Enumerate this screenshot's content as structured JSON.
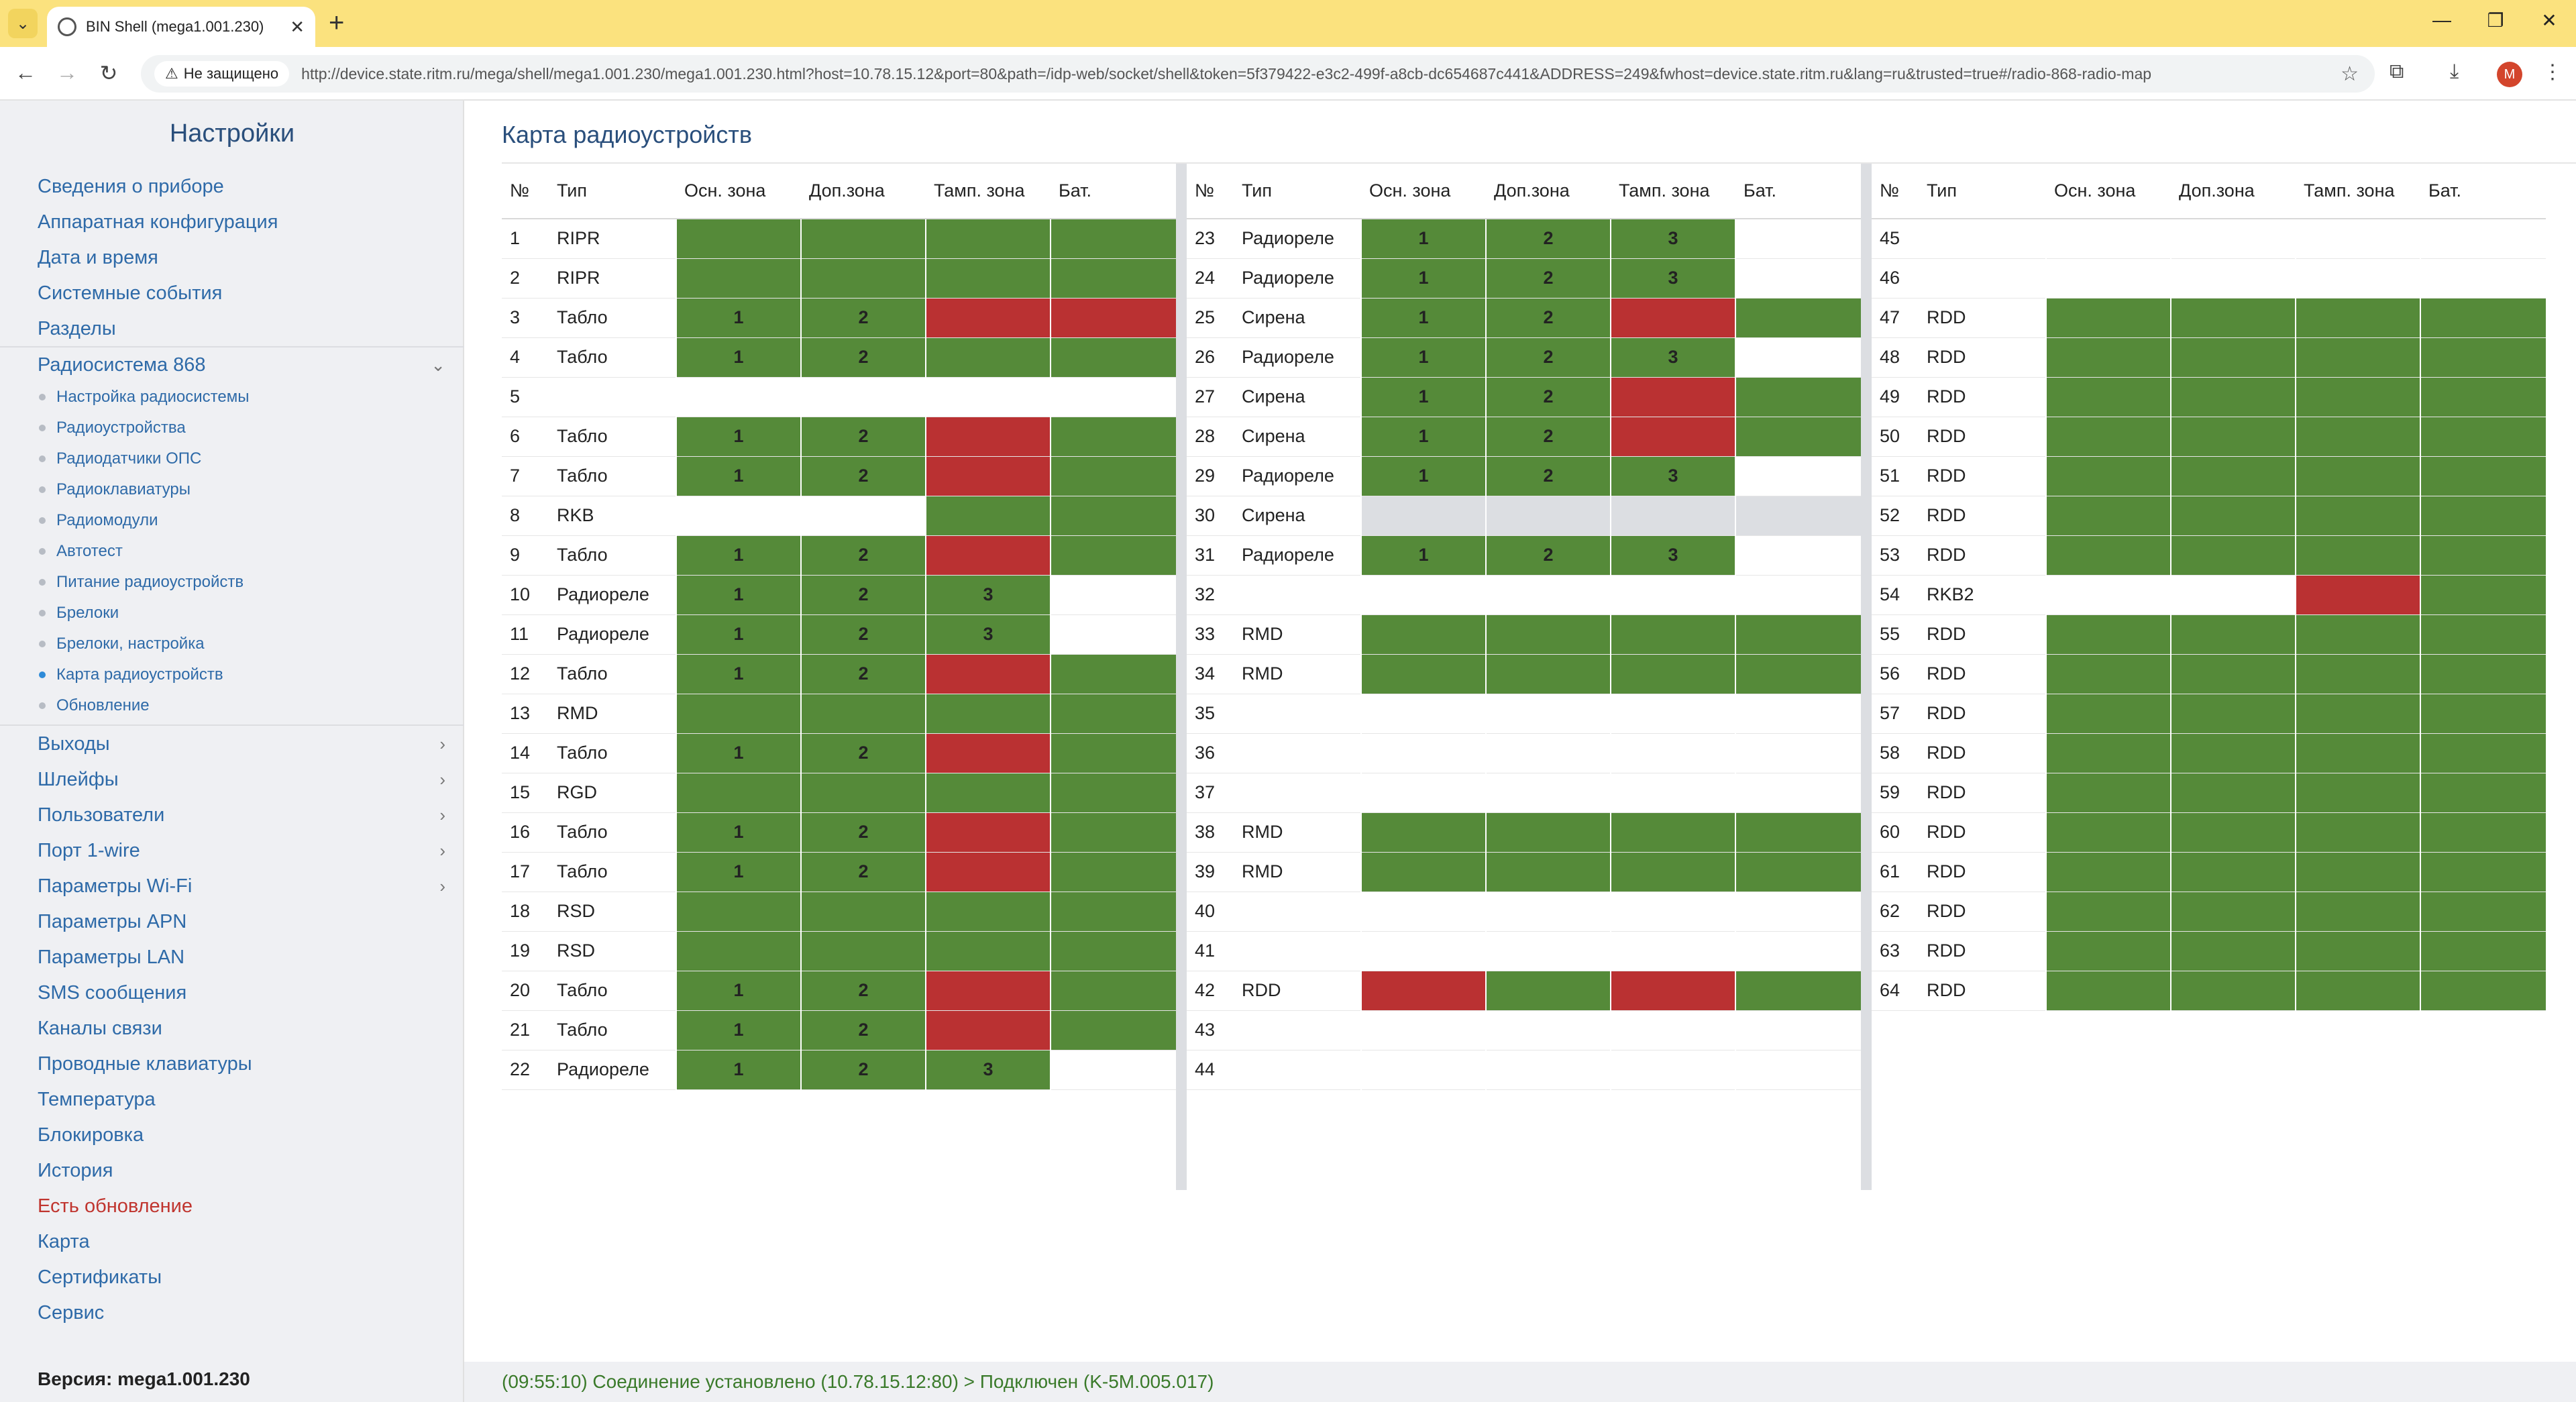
{
  "browser": {
    "tab_title": "BIN Shell (mega1.001.230)",
    "not_secure_label": "Не защищено",
    "url": "http://device.state.ritm.ru/mega/shell/mega1.001.230/mega1.001.230.html?host=10.78.15.12&port=80&path=/idp-web/socket/shell&token=5f379422-e3c2-499f-a8cb-dc654687c441&ADDRESS=249&fwhost=device.state.ritm.ru&lang=ru&trusted=true#/radio-868-radio-map",
    "profile_initial": "M"
  },
  "sidebar": {
    "title": "Настройки",
    "items": [
      {
        "label": "Сведения о приборе"
      },
      {
        "label": "Аппаратная конфигурация"
      },
      {
        "label": "Дата и время"
      },
      {
        "label": "Системные события"
      },
      {
        "label": "Разделы"
      },
      {
        "label": "Радиосистема 868"
      }
    ],
    "sub_items": [
      {
        "label": "Настройка радиосистемы"
      },
      {
        "label": "Радиоустройства"
      },
      {
        "label": "Радиодатчики ОПС"
      },
      {
        "label": "Радиоклавиатуры"
      },
      {
        "label": "Радиомодули"
      },
      {
        "label": "Автотест"
      },
      {
        "label": "Питание радиоустройств"
      },
      {
        "label": "Брелоки"
      },
      {
        "label": "Брелоки, настройка"
      },
      {
        "label": "Карта радиоустройств"
      },
      {
        "label": "Обновление"
      }
    ],
    "items2": [
      {
        "label": "Выходы"
      },
      {
        "label": "Шлейфы"
      },
      {
        "label": "Пользователи"
      },
      {
        "label": "Порт 1-wire"
      },
      {
        "label": "Параметры Wi-Fi"
      },
      {
        "label": "Параметры APN"
      },
      {
        "label": "Параметры LAN"
      },
      {
        "label": "SMS сообщения"
      },
      {
        "label": "Каналы связи"
      },
      {
        "label": "Проводные клавиатуры"
      },
      {
        "label": "Температура"
      },
      {
        "label": "Блокировка"
      },
      {
        "label": "История"
      },
      {
        "label": "Есть обновление"
      },
      {
        "label": "Карта"
      },
      {
        "label": "Сертификаты"
      },
      {
        "label": "Сервис"
      }
    ],
    "version": "Версия: mega1.001.230"
  },
  "main": {
    "title": "Карта радиоустройств",
    "headers": [
      "№",
      "Тип",
      "Осн. зона",
      "Доп.зона",
      "Тамп. зона",
      "Бат."
    ],
    "colors": {
      "green": "#558a39",
      "red": "#ba3132",
      "disabled": "#dcdee2"
    },
    "rows": [
      {
        "n": "1",
        "type": "RIPR",
        "c": [
          "g",
          "",
          "g",
          "",
          "g",
          "",
          "g",
          ""
        ]
      },
      {
        "n": "2",
        "type": "RIPR",
        "c": [
          "g",
          "",
          "g",
          "",
          "g",
          "",
          "g",
          ""
        ]
      },
      {
        "n": "3",
        "type": "Табло",
        "c": [
          "g",
          "1",
          "g",
          "2",
          "r",
          "",
          "r",
          ""
        ]
      },
      {
        "n": "4",
        "type": "Табло",
        "c": [
          "g",
          "1",
          "g",
          "2",
          "g",
          "",
          "g",
          ""
        ]
      },
      {
        "n": "5",
        "type": "",
        "c": [
          "",
          "",
          "",
          "",
          "",
          "",
          "",
          ""
        ]
      },
      {
        "n": "6",
        "type": "Табло",
        "c": [
          "g",
          "1",
          "g",
          "2",
          "r",
          "",
          "g",
          ""
        ]
      },
      {
        "n": "7",
        "type": "Табло",
        "c": [
          "g",
          "1",
          "g",
          "2",
          "r",
          "",
          "g",
          ""
        ]
      },
      {
        "n": "8",
        "type": "RKB",
        "c": [
          "",
          "",
          "",
          "",
          "g",
          "",
          "g",
          ""
        ]
      },
      {
        "n": "9",
        "type": "Табло",
        "c": [
          "g",
          "1",
          "g",
          "2",
          "r",
          "",
          "g",
          ""
        ]
      },
      {
        "n": "10",
        "type": "Радиореле",
        "c": [
          "g",
          "1",
          "g",
          "2",
          "g",
          "3",
          "",
          ""
        ]
      },
      {
        "n": "11",
        "type": "Радиореле",
        "c": [
          "g",
          "1",
          "g",
          "2",
          "g",
          "3",
          "",
          ""
        ]
      },
      {
        "n": "12",
        "type": "Табло",
        "c": [
          "g",
          "1",
          "g",
          "2",
          "r",
          "",
          "g",
          ""
        ]
      },
      {
        "n": "13",
        "type": "RMD",
        "c": [
          "g",
          "",
          "g",
          "",
          "g",
          "",
          "g",
          ""
        ]
      },
      {
        "n": "14",
        "type": "Табло",
        "c": [
          "g",
          "1",
          "g",
          "2",
          "r",
          "",
          "g",
          ""
        ]
      },
      {
        "n": "15",
        "type": "RGD",
        "c": [
          "g",
          "",
          "g",
          "",
          "g",
          "",
          "g",
          ""
        ]
      },
      {
        "n": "16",
        "type": "Табло",
        "c": [
          "g",
          "1",
          "g",
          "2",
          "r",
          "",
          "g",
          ""
        ]
      },
      {
        "n": "17",
        "type": "Табло",
        "c": [
          "g",
          "1",
          "g",
          "2",
          "r",
          "",
          "g",
          ""
        ]
      },
      {
        "n": "18",
        "type": "RSD",
        "c": [
          "g",
          "",
          "g",
          "",
          "g",
          "",
          "g",
          ""
        ]
      },
      {
        "n": "19",
        "type": "RSD",
        "c": [
          "g",
          "",
          "g",
          "",
          "g",
          "",
          "g",
          ""
        ]
      },
      {
        "n": "20",
        "type": "Табло",
        "c": [
          "g",
          "1",
          "g",
          "2",
          "r",
          "",
          "g",
          ""
        ]
      },
      {
        "n": "21",
        "type": "Табло",
        "c": [
          "g",
          "1",
          "g",
          "2",
          "r",
          "",
          "g",
          ""
        ]
      },
      {
        "n": "22",
        "type": "Радиореле",
        "c": [
          "g",
          "1",
          "g",
          "2",
          "g",
          "3",
          "",
          ""
        ]
      },
      {
        "n": "23",
        "type": "Радиореле",
        "c": [
          "g",
          "1",
          "g",
          "2",
          "g",
          "3",
          "",
          ""
        ]
      },
      {
        "n": "24",
        "type": "Радиореле",
        "c": [
          "g",
          "1",
          "g",
          "2",
          "g",
          "3",
          "",
          ""
        ]
      },
      {
        "n": "25",
        "type": "Сирена",
        "c": [
          "g",
          "1",
          "g",
          "2",
          "r",
          "",
          "g",
          ""
        ]
      },
      {
        "n": "26",
        "type": "Радиореле",
        "c": [
          "g",
          "1",
          "g",
          "2",
          "g",
          "3",
          "",
          ""
        ]
      },
      {
        "n": "27",
        "type": "Сирена",
        "c": [
          "g",
          "1",
          "g",
          "2",
          "r",
          "",
          "g",
          ""
        ]
      },
      {
        "n": "28",
        "type": "Сирена",
        "c": [
          "g",
          "1",
          "g",
          "2",
          "r",
          "",
          "g",
          ""
        ]
      },
      {
        "n": "29",
        "type": "Радиореле",
        "c": [
          "g",
          "1",
          "g",
          "2",
          "g",
          "3",
          "",
          ""
        ]
      },
      {
        "n": "30",
        "type": "Сирена",
        "c": [
          "d",
          "",
          "d",
          "",
          "d",
          "",
          "d",
          ""
        ]
      },
      {
        "n": "31",
        "type": "Радиореле",
        "c": [
          "g",
          "1",
          "g",
          "2",
          "g",
          "3",
          "",
          ""
        ]
      },
      {
        "n": "32",
        "type": "",
        "c": [
          "",
          "",
          "",
          "",
          "",
          "",
          "",
          ""
        ]
      },
      {
        "n": "33",
        "type": "RMD",
        "c": [
          "g",
          "",
          "g",
          "",
          "g",
          "",
          "g",
          ""
        ]
      },
      {
        "n": "34",
        "type": "RMD",
        "c": [
          "g",
          "",
          "g",
          "",
          "g",
          "",
          "g",
          ""
        ]
      },
      {
        "n": "35",
        "type": "",
        "c": [
          "",
          "",
          "",
          "",
          "",
          "",
          "",
          ""
        ]
      },
      {
        "n": "36",
        "type": "",
        "c": [
          "",
          "",
          "",
          "",
          "",
          "",
          "",
          ""
        ]
      },
      {
        "n": "37",
        "type": "",
        "c": [
          "",
          "",
          "",
          "",
          "",
          "",
          "",
          ""
        ]
      },
      {
        "n": "38",
        "type": "RMD",
        "c": [
          "g",
          "",
          "g",
          "",
          "g",
          "",
          "g",
          ""
        ]
      },
      {
        "n": "39",
        "type": "RMD",
        "c": [
          "g",
          "",
          "g",
          "",
          "g",
          "",
          "g",
          ""
        ]
      },
      {
        "n": "40",
        "type": "",
        "c": [
          "",
          "",
          "",
          "",
          "",
          "",
          "",
          ""
        ]
      },
      {
        "n": "41",
        "type": "",
        "c": [
          "",
          "",
          "",
          "",
          "",
          "",
          "",
          ""
        ]
      },
      {
        "n": "42",
        "type": "RDD",
        "c": [
          "r",
          "",
          "g",
          "",
          "r",
          "",
          "g",
          ""
        ]
      },
      {
        "n": "43",
        "type": "",
        "c": [
          "",
          "",
          "",
          "",
          "",
          "",
          "",
          ""
        ]
      },
      {
        "n": "44",
        "type": "",
        "c": [
          "",
          "",
          "",
          "",
          "",
          "",
          "",
          ""
        ]
      },
      {
        "n": "45",
        "type": "",
        "c": [
          "",
          "",
          "",
          "",
          "",
          "",
          "",
          ""
        ]
      },
      {
        "n": "46",
        "type": "",
        "c": [
          "",
          "",
          "",
          "",
          "",
          "",
          "",
          ""
        ]
      },
      {
        "n": "47",
        "type": "RDD",
        "c": [
          "g",
          "",
          "g",
          "",
          "g",
          "",
          "g",
          ""
        ]
      },
      {
        "n": "48",
        "type": "RDD",
        "c": [
          "g",
          "",
          "g",
          "",
          "g",
          "",
          "g",
          ""
        ]
      },
      {
        "n": "49",
        "type": "RDD",
        "c": [
          "g",
          "",
          "g",
          "",
          "g",
          "",
          "g",
          ""
        ]
      },
      {
        "n": "50",
        "type": "RDD",
        "c": [
          "g",
          "",
          "g",
          "",
          "g",
          "",
          "g",
          ""
        ]
      },
      {
        "n": "51",
        "type": "RDD",
        "c": [
          "g",
          "",
          "g",
          "",
          "g",
          "",
          "g",
          ""
        ]
      },
      {
        "n": "52",
        "type": "RDD",
        "c": [
          "g",
          "",
          "g",
          "",
          "g",
          "",
          "g",
          ""
        ]
      },
      {
        "n": "53",
        "type": "RDD",
        "c": [
          "g",
          "",
          "g",
          "",
          "g",
          "",
          "g",
          ""
        ]
      },
      {
        "n": "54",
        "type": "RKB2",
        "c": [
          "",
          "",
          "",
          "",
          "r",
          "",
          "g",
          ""
        ]
      },
      {
        "n": "55",
        "type": "RDD",
        "c": [
          "g",
          "",
          "g",
          "",
          "g",
          "",
          "g",
          ""
        ]
      },
      {
        "n": "56",
        "type": "RDD",
        "c": [
          "g",
          "",
          "g",
          "",
          "g",
          "",
          "g",
          ""
        ]
      },
      {
        "n": "57",
        "type": "RDD",
        "c": [
          "g",
          "",
          "g",
          "",
          "g",
          "",
          "g",
          ""
        ]
      },
      {
        "n": "58",
        "type": "RDD",
        "c": [
          "g",
          "",
          "g",
          "",
          "g",
          "",
          "g",
          ""
        ]
      },
      {
        "n": "59",
        "type": "RDD",
        "c": [
          "g",
          "",
          "g",
          "",
          "g",
          "",
          "g",
          ""
        ]
      },
      {
        "n": "60",
        "type": "RDD",
        "c": [
          "g",
          "",
          "g",
          "",
          "g",
          "",
          "g",
          ""
        ]
      },
      {
        "n": "61",
        "type": "RDD",
        "c": [
          "g",
          "",
          "g",
          "",
          "g",
          "",
          "g",
          ""
        ]
      },
      {
        "n": "62",
        "type": "RDD",
        "c": [
          "g",
          "",
          "g",
          "",
          "g",
          "",
          "g",
          ""
        ]
      },
      {
        "n": "63",
        "type": "RDD",
        "c": [
          "g",
          "",
          "g",
          "",
          "g",
          "",
          "g",
          ""
        ]
      },
      {
        "n": "64",
        "type": "RDD",
        "c": [
          "g",
          "",
          "g",
          "",
          "g",
          "",
          "g",
          ""
        ]
      }
    ]
  },
  "status": {
    "text": "(09:55:10) Соединение установлено (10.78.15.12:80) > Подключен (K-5M.005.017)"
  }
}
